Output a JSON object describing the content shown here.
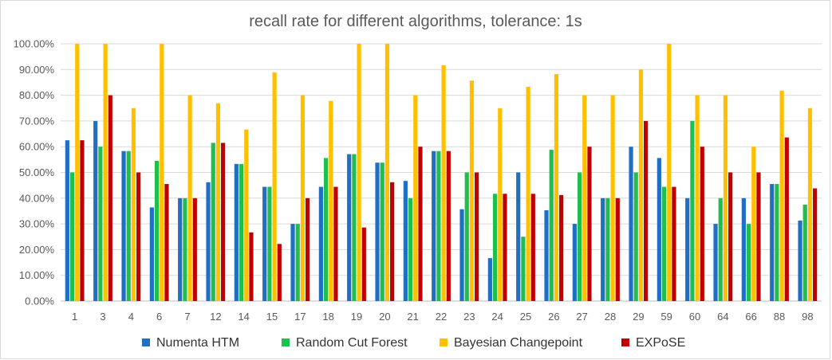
{
  "chart_data": {
    "type": "bar",
    "title": "recall rate for different algorithms, tolerance: 1s",
    "xlabel": "",
    "ylabel": "",
    "ylim": [
      0,
      100
    ],
    "y_ticks": [
      "0.00%",
      "10.00%",
      "20.00%",
      "30.00%",
      "40.00%",
      "50.00%",
      "60.00%",
      "70.00%",
      "80.00%",
      "90.00%",
      "100.00%"
    ],
    "grid": true,
    "legend_position": "bottom",
    "categories": [
      "1",
      "3",
      "4",
      "6",
      "7",
      "12",
      "14",
      "15",
      "17",
      "18",
      "19",
      "20",
      "21",
      "22",
      "23",
      "24",
      "25",
      "26",
      "27",
      "28",
      "29",
      "59",
      "60",
      "64",
      "66",
      "88",
      "98"
    ],
    "series": [
      {
        "name": "Numenta HTM",
        "color": "#1f6fc4",
        "values": [
          62.5,
          70,
          58.3,
          36.4,
          40,
          46.2,
          53.3,
          44.4,
          30,
          44.4,
          57.1,
          53.8,
          46.7,
          58.3,
          35.7,
          16.7,
          50,
          35.3,
          30,
          40,
          60,
          55.6,
          40,
          30,
          40,
          45.5,
          31.3
        ]
      },
      {
        "name": "Random Cut Forest",
        "color": "#1fbf4f",
        "values": [
          50,
          60,
          58.3,
          54.5,
          40,
          61.5,
          53.3,
          44.4,
          30,
          55.6,
          57.1,
          53.8,
          40,
          58.3,
          50,
          41.7,
          25,
          58.8,
          50,
          40,
          50,
          44.4,
          70,
          40,
          30,
          45.5,
          37.5
        ]
      },
      {
        "name": "Bayesian Changepoint",
        "color": "#ffc000",
        "values": [
          100,
          100,
          75,
          100,
          80,
          76.9,
          66.7,
          88.9,
          80,
          77.8,
          100,
          100,
          80,
          91.7,
          85.7,
          75,
          83.3,
          88.2,
          80,
          80,
          90,
          100,
          80,
          80,
          60,
          81.8,
          75
        ]
      },
      {
        "name": "EXPoSE",
        "color": "#c00000",
        "values": [
          62.5,
          80,
          50,
          45.5,
          40,
          61.5,
          26.7,
          22.2,
          40,
          44.4,
          28.6,
          46.2,
          60,
          58.3,
          50,
          41.7,
          41.7,
          41.2,
          60,
          40,
          70,
          44.4,
          60,
          50,
          50,
          63.6,
          43.8
        ]
      }
    ]
  }
}
